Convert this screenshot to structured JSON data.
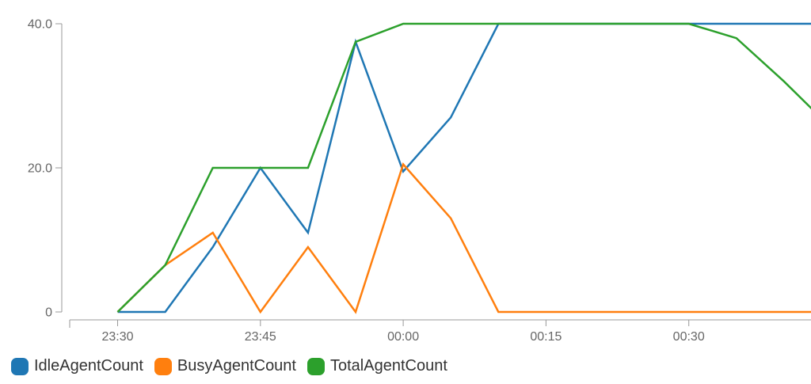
{
  "chart_data": {
    "type": "line",
    "title": "",
    "xlabel": "",
    "ylabel": "",
    "ylim": [
      0,
      40
    ],
    "y_ticks": [
      {
        "value": 0,
        "label": "0"
      },
      {
        "value": 20,
        "label": "20.0"
      },
      {
        "value": 40,
        "label": "40.0"
      }
    ],
    "x": [
      "23:30",
      "23:35",
      "23:40",
      "23:45",
      "23:50",
      "23:55",
      "00:00",
      "00:05",
      "00:10",
      "00:15",
      "00:20",
      "00:25",
      "00:30",
      "00:35",
      "00:40",
      "00:45"
    ],
    "x_ticks": [
      {
        "index": 0,
        "label": "23:30"
      },
      {
        "index": 3,
        "label": "23:45"
      },
      {
        "index": 6,
        "label": "00:00"
      },
      {
        "index": 9,
        "label": "00:15"
      },
      {
        "index": 12,
        "label": "00:30"
      }
    ],
    "grid": false,
    "legend_position": "bottom-left",
    "series": [
      {
        "name": "IdleAgentCount",
        "color": "#1f77b4",
        "values": [
          0,
          0,
          9,
          20,
          11,
          37.5,
          19.5,
          27,
          40,
          40,
          40,
          40,
          40,
          40,
          40,
          40
        ]
      },
      {
        "name": "BusyAgentCount",
        "color": "#ff7f0e",
        "values": [
          0,
          6.5,
          11,
          0,
          9,
          0,
          20.5,
          13,
          0,
          0,
          0,
          0,
          0,
          0,
          0,
          0
        ]
      },
      {
        "name": "TotalAgentCount",
        "color": "#2ca02c",
        "values": [
          0,
          6.5,
          20,
          20,
          20,
          37.5,
          40,
          40,
          40,
          40,
          40,
          40,
          40,
          38,
          32,
          25.5
        ]
      }
    ]
  }
}
